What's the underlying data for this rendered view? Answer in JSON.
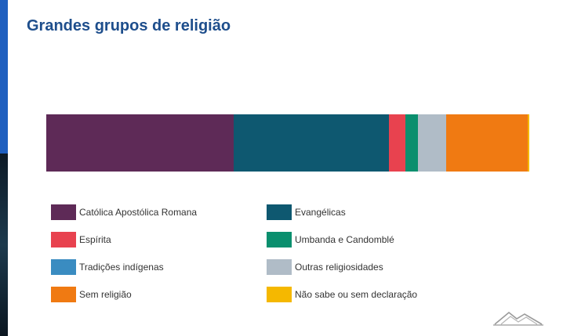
{
  "title": "Grandes grupos de religião",
  "colors": {
    "accent": "#1f5fbf",
    "title": "#1e4e8c"
  },
  "chart_data": {
    "type": "bar",
    "orientation": "horizontal-stacked-100",
    "categories": [
      ""
    ],
    "unit": "percent",
    "series": [
      {
        "name": "Católica Apostólica Romana",
        "values": [
          38.8
        ],
        "color": "#5e2a57"
      },
      {
        "name": "Evangélicas",
        "values": [
          32.1
        ],
        "color": "#0e5870"
      },
      {
        "name": "Espírita",
        "values": [
          3.4
        ],
        "color": "#e8424f"
      },
      {
        "name": "Umbanda e Candomblé",
        "values": [
          2.6
        ],
        "color": "#0a8f6e"
      },
      {
        "name": "Tradições indígenas",
        "values": [
          0.1
        ],
        "color": "#3a8cc1"
      },
      {
        "name": "Outras religiosidades",
        "values": [
          5.8
        ],
        "color": "#b0bcc7"
      },
      {
        "name": "Sem religião",
        "values": [
          16.8
        ],
        "color": "#f07a12"
      },
      {
        "name": "Não sabe ou sem declaração",
        "values": [
          0.4
        ],
        "color": "#f5b800"
      }
    ],
    "legend_order": [
      0,
      1,
      2,
      3,
      4,
      5,
      6,
      7
    ],
    "legend_placement": "bottom",
    "grid": false
  }
}
